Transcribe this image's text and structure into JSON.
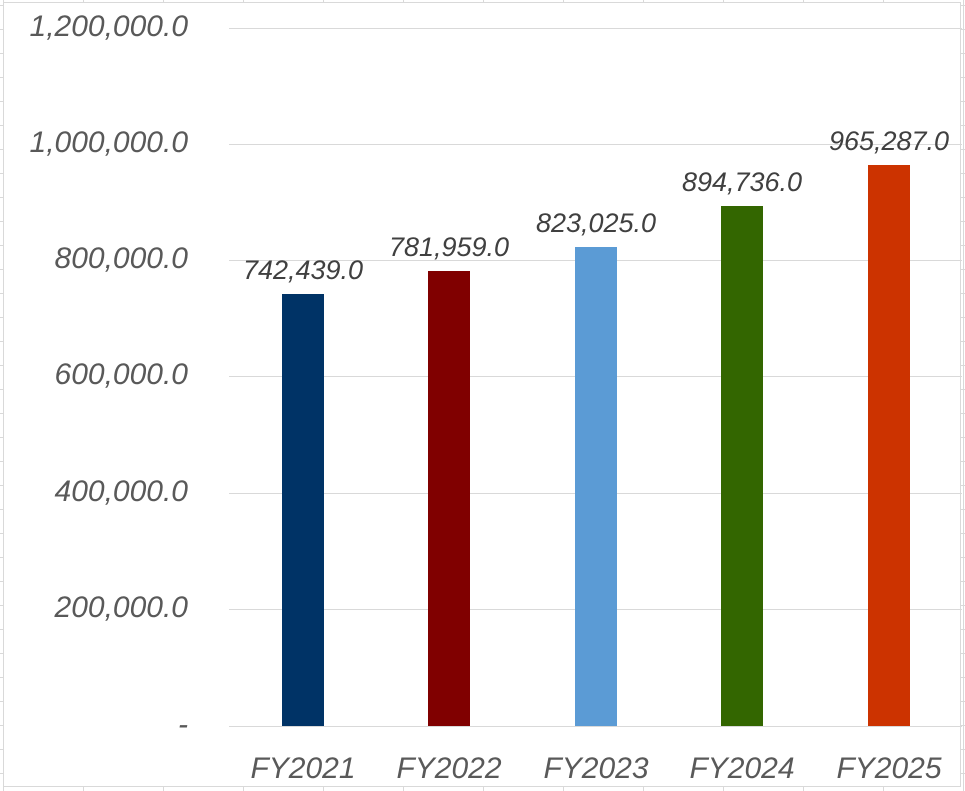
{
  "chart_data": {
    "type": "bar",
    "title": "",
    "xlabel": "",
    "ylabel": "",
    "categories": [
      "FY2021",
      "FY2022",
      "FY2023",
      "FY2024",
      "FY2025"
    ],
    "values": [
      742439.0,
      781959.0,
      823025.0,
      894736.0,
      965287.0
    ],
    "data_labels": [
      "742,439.0",
      "781,959.0",
      "823,025.0",
      "894,736.0",
      "965,287.0"
    ],
    "bar_colors": [
      "#003366",
      "#800000",
      "#5B9BD5",
      "#336600",
      "#CC3300"
    ],
    "ylim": [
      0,
      1200000
    ],
    "yticks": [
      0,
      200000,
      400000,
      600000,
      800000,
      1000000,
      1200000
    ],
    "ytick_labels": [
      "-",
      "200,000.0",
      "400,000.0",
      "600,000.0",
      "800,000.0",
      "1,000,000.0",
      "1,200,000.0"
    ],
    "grid": true,
    "legend": null
  }
}
